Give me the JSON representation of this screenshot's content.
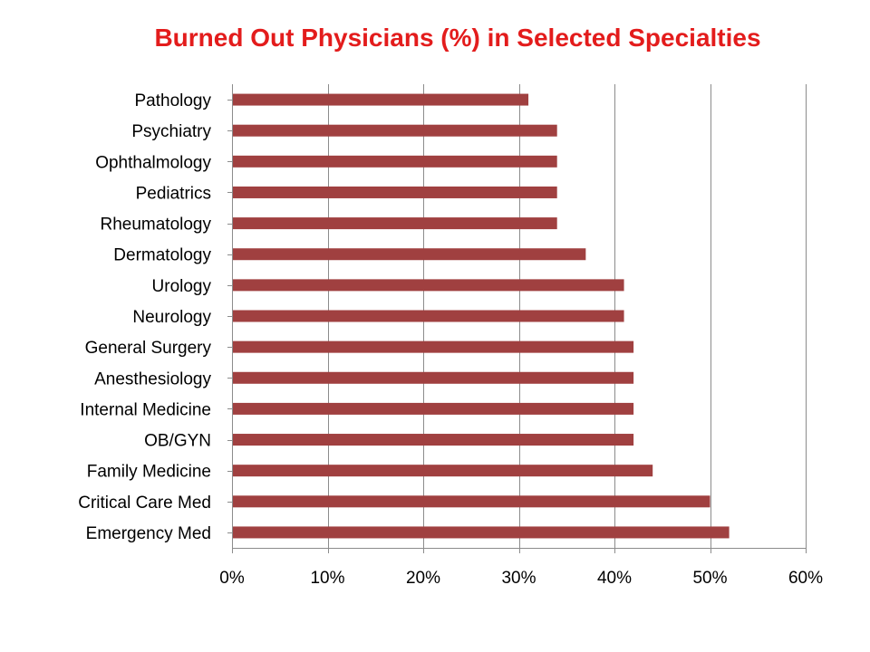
{
  "chart_data": {
    "type": "bar",
    "orientation": "horizontal",
    "title": "Burned Out Physicians (%) in Selected Specialties",
    "title_color": "#e31c1c",
    "bar_color": "#a04040",
    "xlabel": "",
    "ylabel": "",
    "xlim": [
      0,
      60
    ],
    "xticks": [
      0,
      10,
      20,
      30,
      40,
      50,
      60
    ],
    "xtick_labels": [
      "0%",
      "10%",
      "20%",
      "30%",
      "40%",
      "50%",
      "60%"
    ],
    "grid": "vertical",
    "legend": "none",
    "categories": [
      "Pathology",
      "Psychiatry",
      "Ophthalmology",
      "Pediatrics",
      "Rheumatology",
      "Dermatology",
      "Urology",
      "Neurology",
      "General Surgery",
      "Anesthesiology",
      "Internal Medicine",
      "OB/GYN",
      "Family Medicine",
      "Critical Care Med",
      "Emergency Med"
    ],
    "values": [
      31,
      34,
      34,
      34,
      34,
      37,
      41,
      41,
      42,
      42,
      42,
      42,
      44,
      50,
      52
    ]
  }
}
